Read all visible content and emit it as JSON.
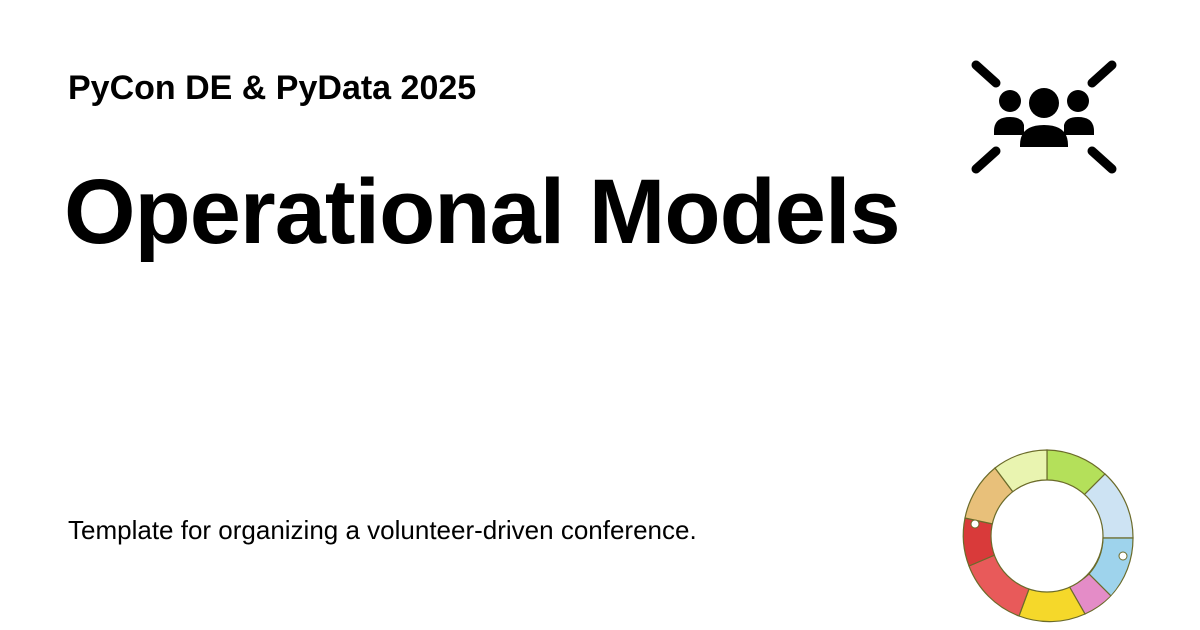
{
  "header": {
    "event_name": "PyCon DE & PyData 2025"
  },
  "main": {
    "title": "Operational Models",
    "description": "Template for organizing a volunteer-driven conference."
  },
  "icons": {
    "top_right": "group-icon",
    "bottom_right": "pycon-de-ring-logo"
  },
  "colors": {
    "text": "#000000",
    "background": "#ffffff",
    "logo_segments": [
      "#b4e05a",
      "#cde3f3",
      "#e48cc7",
      "#f5d82a",
      "#e85a5a",
      "#e8c07a",
      "#e9f4b0"
    ]
  }
}
